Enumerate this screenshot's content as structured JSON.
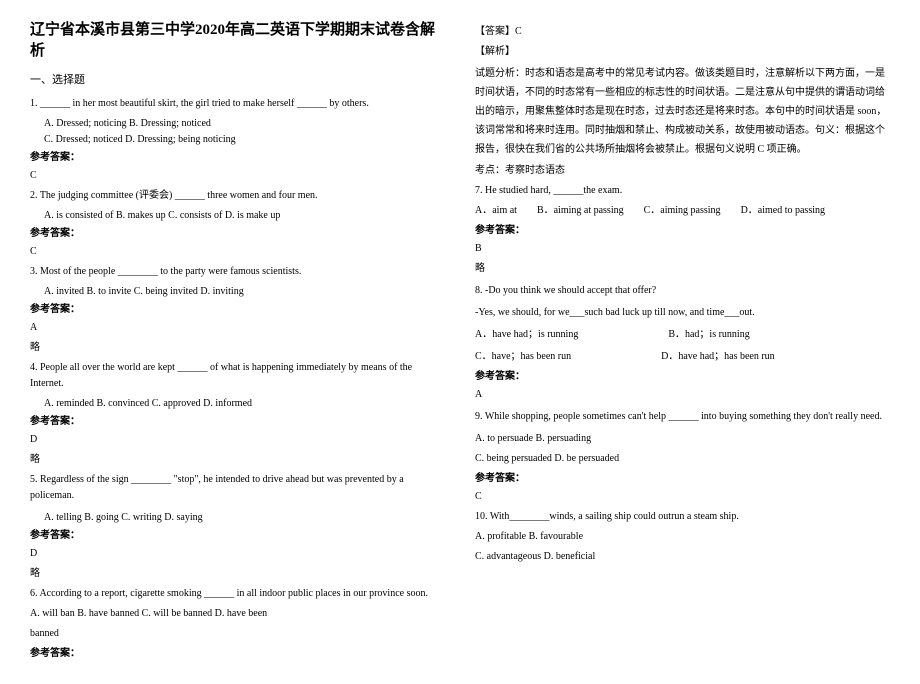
{
  "title": "辽宁省本溪市县第三中学2020年高二英语下学期期末试卷含解析",
  "section1": "一、选择题",
  "ans_label": "参考答案：",
  "lue": "略",
  "left": {
    "q1": "1. ______ in her most beautiful skirt, the girl tried to make herself ______ by others.",
    "q1opts": "A. Dressed; noticing    B. Dressing; noticed\nC. Dressed; noticed    D. Dressing; being noticing",
    "a1": "C",
    "q2": "2. The judging committee (评委会) ______ three women and four men.",
    "q2opts": "A. is consisted of   B. makes up   C. consists of    D. is make up",
    "a2": "C",
    "q3": "3. Most of the people ________ to the party were famous scientists.",
    "q3opts": "A. invited       B. to invite       C. being invited     D. inviting",
    "a3": "A",
    "q4": "4. People all over the world are kept ______ of what is happening immediately by means of the Internet.",
    "q4opts": "A. reminded           B. convinced           C. approved           D. informed",
    "a4": "D",
    "q5": "5. Regardless of the sign ________ \"stop\", he intended to drive ahead but was prevented by a policeman.",
    "q5opts": "A. telling          B. going          C. writing           D. saying",
    "a5": "D",
    "q6": "6. According to a report, cigarette smoking ______ in all indoor public places in our province soon.",
    "q6opts": "A. will ban          B. have banned          C. will be banned          D. have been",
    "q6extra": "banned"
  },
  "right": {
    "ans6a": "【答案】C",
    "ans6b": "【解析】",
    "ans6c": "试题分析：时态和语态是高考中的常见考试内容。做该类题目时，注意解析以下两方面，一是时间状语，不同的时态常有一些相应的标志性的时间状语。二是注意从句中提供的谓语动词给出的暗示，用聚焦整体时态是现在时态，过去时态还是将来时态。本句中的时间状语是 soon，该词常常和将来时连用。同时抽烟和禁止、构成被动关系，故使用被动语态。句义：根据这个报告，很快在我们省的公共场所抽烟将会被禁止。根据句义说明 C 项正确。",
    "ans6d": "考点：考察时态语态",
    "q7": "7. He studied hard, ______the exam.",
    "q7a": "A．aim at",
    "q7b": "B．aiming at passing",
    "q7c": "C．aiming passing",
    "q7d": "D．aimed to passing",
    "a7": "B",
    "q8": "8. -Do you think we should accept that offer?",
    "q8b": "-Yes, we should, for we___such bad luck up till now, and time___out.",
    "q8oa": "A．have had；is running",
    "q8ob": "B．had；is running",
    "q8oc": "C．have；has been run",
    "q8od": "D．have had；has been run",
    "a8": "A",
    "q9": "9.  While shopping, people sometimes can't help ______ into buying something they don't really need.",
    "q9oa": "A. to persuade          B. persuading",
    "q9ob": "C. being persuaded         D. be persuaded",
    "a9": "C",
    "q10": "10. With________winds, a sailing ship could outrun a steam ship.",
    "q10oa": "A. profitable     B. favourable",
    "q10ob": "C. advantageous   D. beneficial"
  }
}
